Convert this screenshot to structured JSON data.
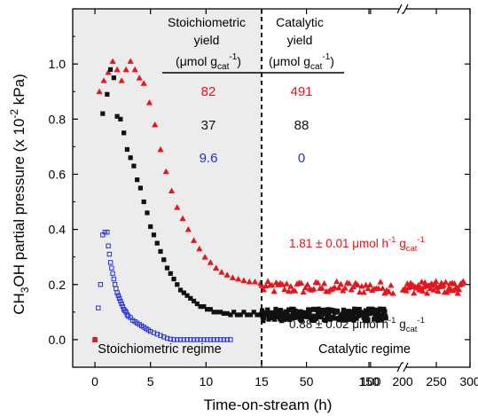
{
  "chart_data": {
    "type": "scatter",
    "xlabel": "Time-on-stream (h)",
    "ylabel_parts": [
      "CH",
      "3",
      "OH partial pressure (x 10",
      "-2",
      " kPa)"
    ],
    "x_segments": [
      {
        "range": [
          -2,
          15
        ],
        "ticks": [
          "0",
          "5",
          "10",
          "15"
        ],
        "tick_values": [
          0,
          5,
          10,
          15
        ]
      },
      {
        "range": [
          15,
          125
        ],
        "ticks": [
          "50",
          "100"
        ],
        "tick_values": [
          50,
          100
        ]
      },
      {
        "range": [
          200,
          300
        ],
        "ticks": [
          "150",
          "200",
          "250",
          "300"
        ],
        "tick_values": [
          150,
          200,
          250,
          300
        ]
      }
    ],
    "ylim": [
      -0.1,
      1.2
    ],
    "y_ticks": [
      0.0,
      0.2,
      0.4,
      0.6,
      0.8,
      1.0
    ],
    "y_tick_labels": [
      "0.0",
      "0.2",
      "0.4",
      "0.6",
      "0.8",
      "1.0"
    ],
    "shaded_region_x": [
      -2,
      15
    ],
    "divider_x": 15,
    "region_labels": [
      "Stoichiometric regime",
      "Catalytic regime"
    ],
    "table": {
      "headers": [
        {
          "line1": "Stoichiometric",
          "line2": "yield",
          "unit": "(μmol g",
          "unit_sub": "cat",
          "unit_sup": "-1",
          "unit_end": ")"
        },
        {
          "line1": "Catalytic",
          "line2": "yield",
          "unit": "(μmol g",
          "unit_sub": "cat",
          "unit_sup": "-1",
          "unit_end": ")"
        }
      ],
      "rows": [
        {
          "color": "#e8141c",
          "values": [
            "82",
            "491"
          ]
        },
        {
          "color": "#111111",
          "values": [
            "37",
            "88"
          ]
        },
        {
          "color": "#1f2fd8",
          "values": [
            "9.6",
            "0"
          ]
        }
      ]
    },
    "annotations": [
      {
        "color": "#e8141c",
        "value": "1.81 ± 0.01",
        "unit": "μmol h",
        "sup1": "-1",
        "mid": " g",
        "sub": "cat",
        "sup2": "-1"
      },
      {
        "color": "#111111",
        "value": "0.88 ± 0.02",
        "unit": "μmol h",
        "sup1": "-1",
        "mid": " g",
        "sub": "cat",
        "sup2": "-1"
      }
    ],
    "series": [
      {
        "color": "#e8141c",
        "marker": "triangle",
        "points": [
          [
            0,
            0
          ],
          [
            0.4,
            0.9
          ],
          [
            0.8,
            0.94
          ],
          [
            1.2,
            0.97
          ],
          [
            1.6,
            1.01
          ],
          [
            2.0,
            0.98
          ],
          [
            2.4,
            0.94
          ],
          [
            2.8,
            0.98
          ],
          [
            3.2,
            1.01
          ],
          [
            3.6,
            0.98
          ],
          [
            4.0,
            0.95
          ],
          [
            4.4,
            0.93
          ],
          [
            4.9,
            0.86
          ],
          [
            5.4,
            0.78
          ],
          [
            5.9,
            0.69
          ],
          [
            6.4,
            0.61
          ],
          [
            6.9,
            0.54
          ],
          [
            7.4,
            0.48
          ],
          [
            7.9,
            0.44
          ],
          [
            8.4,
            0.4
          ],
          [
            8.9,
            0.36
          ],
          [
            9.4,
            0.33
          ],
          [
            9.9,
            0.3
          ],
          [
            10.4,
            0.28
          ],
          [
            10.9,
            0.26
          ],
          [
            11.4,
            0.245
          ],
          [
            11.9,
            0.235
          ],
          [
            12.4,
            0.225
          ],
          [
            12.9,
            0.22
          ],
          [
            13.4,
            0.215
          ],
          [
            13.9,
            0.21
          ],
          [
            14.4,
            0.21
          ],
          [
            14.9,
            0.205
          ]
        ],
        "band": {
          "x": [
            15,
            290
          ],
          "gap": [
            118,
            200
          ],
          "y": 0.19,
          "spread": 0.022,
          "count": 170
        }
      },
      {
        "color": "#111111",
        "marker": "square",
        "points": [
          [
            0,
            0
          ],
          [
            0.7,
            0.82
          ],
          [
            1.1,
            0.89
          ],
          [
            1.4,
            0.98
          ],
          [
            1.7,
            0.95
          ],
          [
            2.0,
            0.81
          ],
          [
            2.3,
            0.8
          ],
          [
            2.6,
            0.75
          ],
          [
            2.9,
            0.69
          ],
          [
            3.2,
            0.66
          ],
          [
            3.5,
            0.63
          ],
          [
            3.8,
            0.58
          ],
          [
            4.1,
            0.55
          ],
          [
            4.4,
            0.5
          ],
          [
            4.7,
            0.46
          ],
          [
            5.0,
            0.41
          ],
          [
            5.3,
            0.38
          ],
          [
            5.6,
            0.35
          ],
          [
            5.9,
            0.32
          ],
          [
            6.2,
            0.29
          ],
          [
            6.5,
            0.26
          ],
          [
            6.8,
            0.24
          ],
          [
            7.1,
            0.22
          ],
          [
            7.4,
            0.2
          ],
          [
            7.7,
            0.18
          ],
          [
            8.0,
            0.17
          ],
          [
            8.3,
            0.16
          ],
          [
            8.6,
            0.15
          ],
          [
            8.9,
            0.14
          ],
          [
            9.2,
            0.13
          ],
          [
            9.5,
            0.12
          ],
          [
            9.8,
            0.12
          ],
          [
            10.1,
            0.11
          ],
          [
            10.4,
            0.11
          ],
          [
            10.7,
            0.1
          ],
          [
            11.0,
            0.1
          ],
          [
            11.3,
            0.1
          ],
          [
            11.6,
            0.095
          ],
          [
            11.9,
            0.095
          ],
          [
            12.2,
            0.09
          ],
          [
            12.5,
            0.1
          ],
          [
            12.8,
            0.09
          ],
          [
            13.1,
            0.09
          ],
          [
            13.4,
            0.1
          ],
          [
            13.7,
            0.09
          ],
          [
            14.0,
            0.09
          ],
          [
            14.3,
            0.1
          ],
          [
            14.6,
            0.09
          ],
          [
            14.9,
            0.09
          ]
        ],
        "band": {
          "x": [
            15,
            112
          ],
          "y": 0.09,
          "spread": 0.022,
          "count": 230
        }
      },
      {
        "color": "#2433d6",
        "marker": "open-square",
        "points": [
          [
            0,
            0
          ],
          [
            0.3,
            0.115
          ],
          [
            0.5,
            0.2
          ],
          [
            0.7,
            0.38
          ],
          [
            0.9,
            0.39
          ],
          [
            1.1,
            0.39
          ],
          [
            1.2,
            0.34
          ],
          [
            1.3,
            0.31
          ],
          [
            1.4,
            0.28
          ],
          [
            1.5,
            0.26
          ],
          [
            1.6,
            0.24
          ],
          [
            1.7,
            0.22
          ],
          [
            1.8,
            0.2
          ],
          [
            1.9,
            0.185
          ],
          [
            2.0,
            0.17
          ],
          [
            2.1,
            0.16
          ],
          [
            2.2,
            0.15
          ],
          [
            2.3,
            0.14
          ],
          [
            2.4,
            0.13
          ],
          [
            2.5,
            0.12
          ],
          [
            2.6,
            0.11
          ],
          [
            2.7,
            0.105
          ],
          [
            2.8,
            0.1
          ],
          [
            2.9,
            0.09
          ],
          [
            3.0,
            0.085
          ],
          [
            3.2,
            0.08
          ],
          [
            3.4,
            0.07
          ],
          [
            3.6,
            0.065
          ],
          [
            3.8,
            0.06
          ],
          [
            4.0,
            0.055
          ],
          [
            4.2,
            0.05
          ],
          [
            4.4,
            0.045
          ],
          [
            4.6,
            0.04
          ],
          [
            4.8,
            0.035
          ],
          [
            5.0,
            0.03
          ],
          [
            5.3,
            0.025
          ],
          [
            5.6,
            0.02
          ],
          [
            5.9,
            0.015
          ],
          [
            6.2,
            0.01
          ],
          [
            6.5,
            0.005
          ],
          [
            6.8,
            0.002
          ],
          [
            7.1,
            0.0
          ],
          [
            7.4,
            0.0
          ],
          [
            7.7,
            0.0
          ],
          [
            8.0,
            0.0
          ],
          [
            8.3,
            0.0
          ],
          [
            8.6,
            0.0
          ],
          [
            8.9,
            0.0
          ],
          [
            9.2,
            0.0
          ],
          [
            9.5,
            0.0
          ],
          [
            9.8,
            0.0
          ],
          [
            10.1,
            0.0
          ],
          [
            10.4,
            0.0
          ],
          [
            10.7,
            0.0
          ],
          [
            11.0,
            0.0
          ],
          [
            11.3,
            0.0
          ],
          [
            11.6,
            0.0
          ],
          [
            11.9,
            0.0
          ],
          [
            12.2,
            0.0
          ]
        ]
      }
    ],
    "origin_marker": {
      "x": 0,
      "y": 0,
      "color": "#e8141c"
    }
  }
}
